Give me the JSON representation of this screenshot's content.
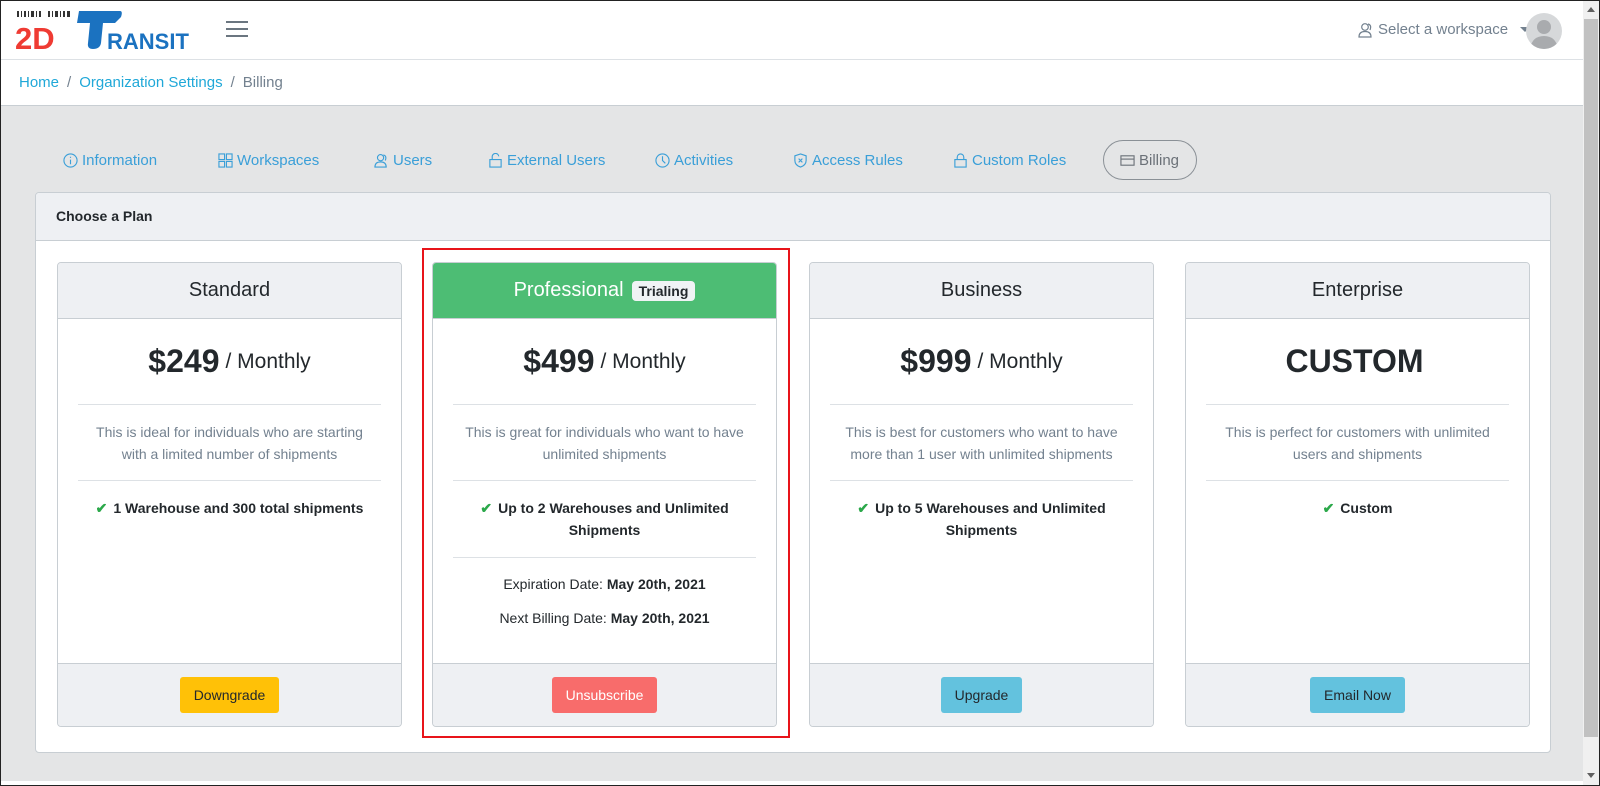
{
  "header": {
    "logo_text": "2DTRANSIT",
    "workspace_label": "Select a workspace"
  },
  "breadcrumb": [
    "Home",
    "Organization Settings",
    "Billing"
  ],
  "tabs": [
    {
      "label": "Information",
      "icon": "info-icon"
    },
    {
      "label": "Workspaces",
      "icon": "grid-icon"
    },
    {
      "label": "Users",
      "icon": "users-icon"
    },
    {
      "label": "External Users",
      "icon": "unlock-icon"
    },
    {
      "label": "Activities",
      "icon": "clock-icon"
    },
    {
      "label": "Access Rules",
      "icon": "shield-icon"
    },
    {
      "label": "Custom Roles",
      "icon": "lock-icon"
    },
    {
      "label": "Billing",
      "icon": "credit-card-icon",
      "active": true
    }
  ],
  "card_title": "Choose a Plan",
  "plans": [
    {
      "name": "Standard",
      "price": "$249",
      "period": "/ Monthly",
      "description": "This is ideal for individuals who are starting with a limited number of shipments",
      "feature": "1 Warehouse and 300 total shipments",
      "button": "Downgrade",
      "button_color": "#ffc107"
    },
    {
      "name": "Professional",
      "badge": "Trialing",
      "price": "$499",
      "period": "/ Monthly",
      "description": "This is great for individuals who want to have unlimited shipments",
      "feature": "Up to 2 Warehouses and Unlimited Shipments",
      "expiration_label": "Expiration Date:",
      "expiration_value": "May 20th, 2021",
      "billing_label": "Next Billing Date:",
      "billing_value": "May 20th, 2021",
      "button": "Unsubscribe",
      "button_color": "#f86c6b",
      "header_color": "#4dbd74"
    },
    {
      "name": "Business",
      "price": "$999",
      "period": "/ Monthly",
      "description": "This is best for customers who want to have more than 1 user with unlimited shipments",
      "feature": "Up to 5 Warehouses and Unlimited Shipments",
      "button": "Upgrade",
      "button_color": "#63c2de"
    },
    {
      "name": "Enterprise",
      "price": "CUSTOM",
      "description": "This is perfect for customers with unlimited users and shipments",
      "feature": "Custom",
      "button": "Email Now",
      "button_color": "#63c2de"
    }
  ]
}
